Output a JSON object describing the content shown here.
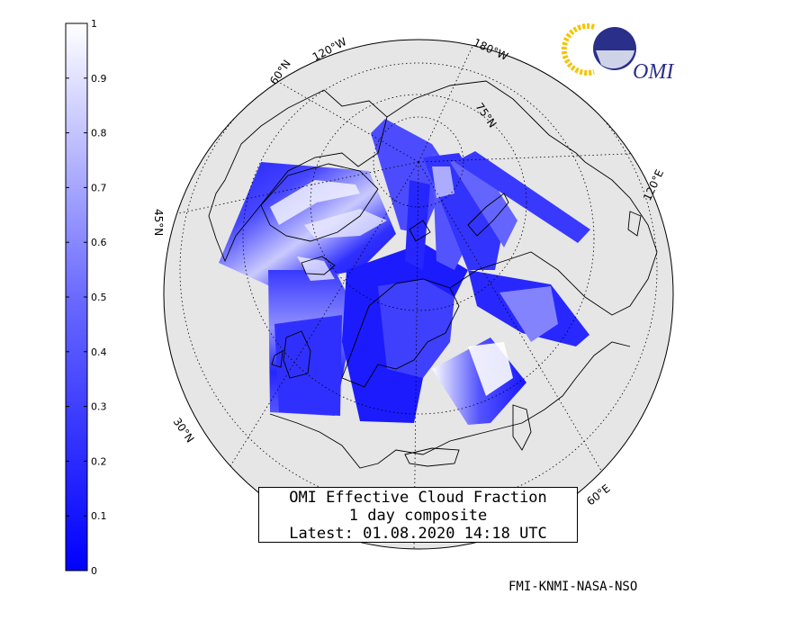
{
  "colorbar": {
    "ticks": [
      "1",
      "0.9",
      "0.8",
      "0.7",
      "0.6",
      "0.5",
      "0.4",
      "0.3",
      "0.2",
      "0.1",
      "0"
    ],
    "min": 0,
    "max": 1,
    "color_low": "#0000ff",
    "color_high": "#ffffff"
  },
  "map": {
    "projection": "polar-stereographic-north",
    "background_color": "#e6e6e6",
    "lat_labels": [
      "75°N",
      "60°N",
      "45°N",
      "30°N"
    ],
    "lon_labels": [
      "180°W",
      "120°W",
      "120°E",
      "60°E"
    ]
  },
  "logo": {
    "text": "OMI",
    "colors": [
      "#1a237e",
      "#f5c400"
    ]
  },
  "caption": {
    "line1": "OMI Effective Cloud Fraction",
    "line2": "1 day composite",
    "line3": "Latest: 01.08.2020 14:18 UTC"
  },
  "credit": "FMI-KNMI-NASA-NSO"
}
